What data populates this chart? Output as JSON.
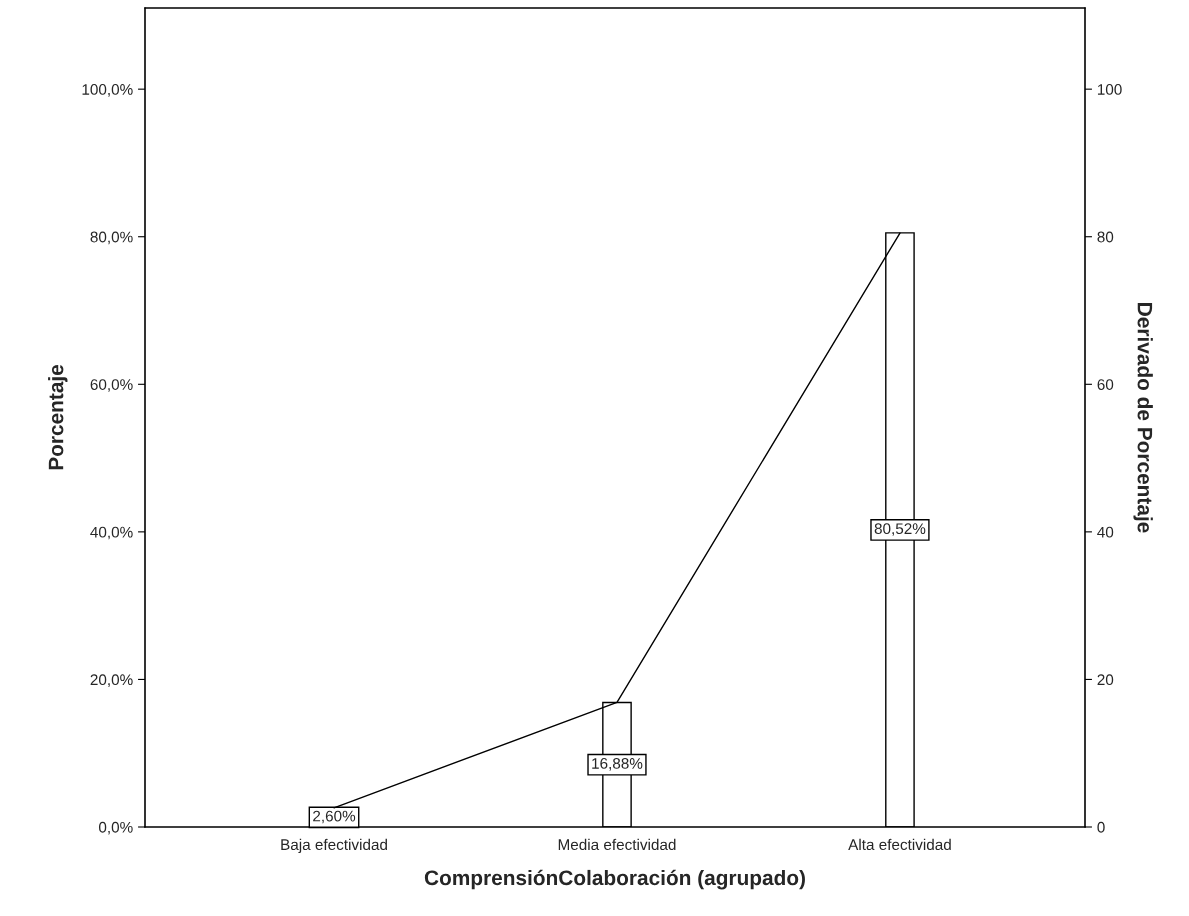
{
  "chart_data": {
    "type": "bar",
    "xlabel": "ComprensiónColaboración (agrupado)",
    "ylabel": "Porcentaje",
    "y2label": "Derivado de Porcentaje",
    "categories": [
      "Baja efectividad",
      "Media efectividad",
      "Alta efectividad"
    ],
    "series": [
      {
        "color": "#ffffff",
        "values": [
          2.6,
          16.88,
          80.52
        ],
        "value_labels": [
          "2,60%",
          "16,88%",
          "80,52%"
        ]
      },
      {
        "type": "line",
        "axis": "y2",
        "color": "#000000",
        "values": [
          2.6,
          16.9,
          80.5
        ]
      }
    ],
    "ylim": [
      0,
      111
    ],
    "yticks": [
      {
        "value": 0,
        "label": "0,0%"
      },
      {
        "value": 20,
        "label": "20,0%"
      },
      {
        "value": 40,
        "label": "40,0%"
      },
      {
        "value": 60,
        "label": "60,0%"
      },
      {
        "value": 80,
        "label": "80,0%"
      },
      {
        "value": 100,
        "label": "100,0%"
      }
    ],
    "y2lim": [
      0,
      111
    ],
    "y2ticks": [
      0,
      20,
      40,
      60,
      80,
      100
    ],
    "grid": false,
    "legend": false,
    "marker": "none",
    "line_style": "solid"
  }
}
